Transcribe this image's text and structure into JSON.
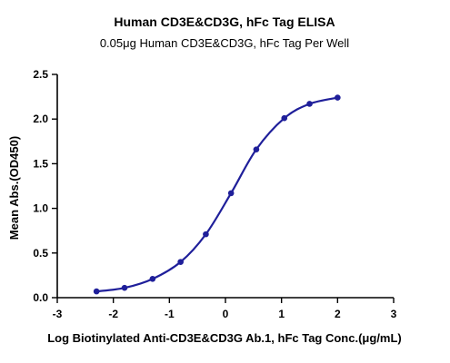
{
  "chart_data": {
    "type": "line",
    "title": "Human CD3E&CD3G, hFc Tag ELISA",
    "subtitle": "0.05μg Human CD3E&CD3G, hFc Tag Per Well",
    "xlabel": "Log Biotinylated Anti-CD3E&CD3G Ab.1, hFc Tag Conc.(μg/mL)",
    "ylabel": "Mean Abs.(OD450)",
    "xlim": [
      -3,
      3
    ],
    "ylim": [
      0,
      2.5
    ],
    "xticks": [
      "-3",
      "-2",
      "-1",
      "0",
      "1",
      "2",
      "3"
    ],
    "yticks": [
      "0.0",
      "0.5",
      "1.0",
      "1.5",
      "2.0",
      "2.5"
    ],
    "grid": false,
    "legend": "none",
    "series": [
      {
        "color": "#1f1f9a",
        "points": [
          {
            "x": -2.3,
            "y": 0.07
          },
          {
            "x": -1.8,
            "y": 0.11
          },
          {
            "x": -1.3,
            "y": 0.21
          },
          {
            "x": -0.8,
            "y": 0.4
          },
          {
            "x": -0.35,
            "y": 0.71
          },
          {
            "x": 0.1,
            "y": 1.17
          },
          {
            "x": 0.55,
            "y": 1.66
          },
          {
            "x": 1.05,
            "y": 2.01
          },
          {
            "x": 1.5,
            "y": 2.17
          },
          {
            "x": 2.0,
            "y": 2.24
          }
        ]
      }
    ]
  }
}
